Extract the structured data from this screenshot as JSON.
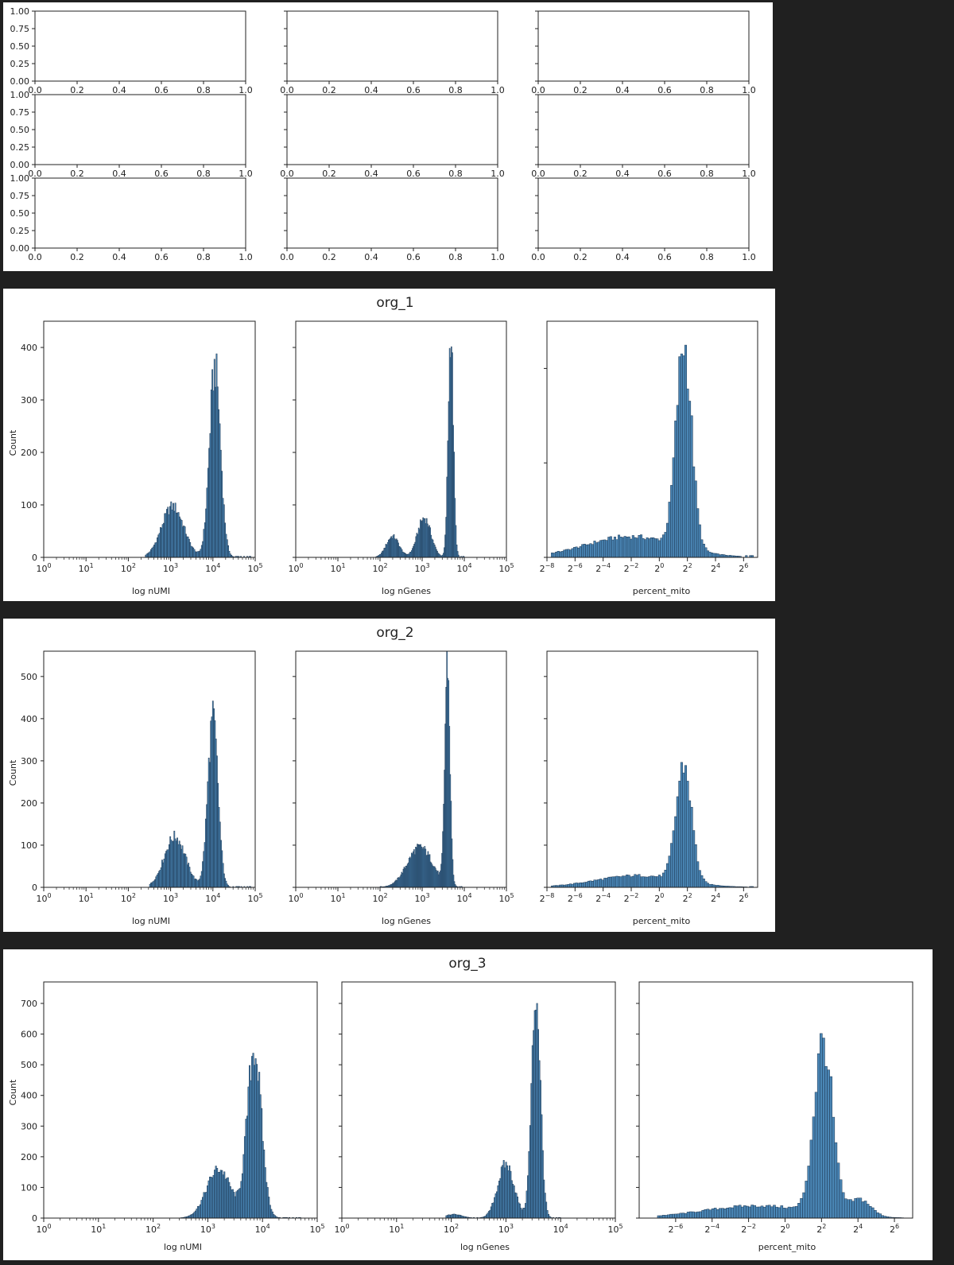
{
  "empty_grid": {
    "rows": 3,
    "cols": 3,
    "x_ticks": [
      "0.0",
      "0.2",
      "0.4",
      "0.6",
      "0.8",
      "1.0"
    ],
    "y_ticks": [
      "0.00",
      "0.25",
      "0.50",
      "0.75",
      "1.00"
    ]
  },
  "chart_data": [
    {
      "title": "org_1",
      "subplots": [
        {
          "type": "histogram",
          "xlabel": "log nUMI",
          "ylabel": "Count",
          "x_scale": "log10",
          "xlim": [
            "10^0",
            "10^5"
          ],
          "ylim": [
            0,
            450
          ],
          "y_ticks": [
            "0",
            "100",
            "200",
            "300",
            "400"
          ],
          "x_ticks": [
            {
              "base": "10",
              "exp": "0"
            },
            {
              "base": "10",
              "exp": "1"
            },
            {
              "base": "10",
              "exp": "2"
            },
            {
              "base": "10",
              "exp": "3"
            },
            {
              "base": "10",
              "exp": "4"
            },
            {
              "base": "10",
              "exp": "5"
            }
          ],
          "peaks": [
            {
              "center_log": 3.05,
              "height": 97,
              "width": 0.26
            },
            {
              "center_log": 4.05,
              "height": 362,
              "width": 0.13
            }
          ],
          "support_log": [
            2.4,
            4.9
          ]
        },
        {
          "type": "histogram",
          "xlabel": "log nGenes",
          "ylabel": "",
          "x_scale": "log10",
          "xlim": [
            "10^0",
            "10^5"
          ],
          "ylim": [
            0,
            450
          ],
          "x_ticks": [
            {
              "base": "10",
              "exp": "0"
            },
            {
              "base": "10",
              "exp": "1"
            },
            {
              "base": "10",
              "exp": "2"
            },
            {
              "base": "10",
              "exp": "3"
            },
            {
              "base": "10",
              "exp": "4"
            },
            {
              "base": "10",
              "exp": "5"
            }
          ],
          "peaks": [
            {
              "center_log": 2.3,
              "height": 40,
              "width": 0.15
            },
            {
              "center_log": 3.05,
              "height": 75,
              "width": 0.16
            },
            {
              "center_log": 3.68,
              "height": 430,
              "width": 0.06
            }
          ],
          "support_log": [
            1.9,
            4.0
          ]
        },
        {
          "type": "histogram",
          "xlabel": "percent_mito",
          "ylabel": "",
          "x_scale": "log2",
          "xlim": [
            "2^-8",
            "2^7"
          ],
          "ylim": [
            0,
            250
          ],
          "x_ticks": [
            {
              "base": "2",
              "exp": "−8"
            },
            {
              "base": "2",
              "exp": "−6"
            },
            {
              "base": "2",
              "exp": "−4"
            },
            {
              "base": "2",
              "exp": "−2"
            },
            {
              "base": "2",
              "exp": "0"
            },
            {
              "base": "2",
              "exp": "2"
            },
            {
              "base": "2",
              "exp": "4"
            },
            {
              "base": "2",
              "exp": "6"
            }
          ],
          "peaks": [
            {
              "center_log": 1.75,
              "height": 215,
              "width": 0.55
            },
            {
              "center_log": -2.0,
              "height": 22,
              "width": 3.2
            }
          ],
          "support_log": [
            -7.7,
            6.7
          ]
        }
      ]
    },
    {
      "title": "org_2",
      "subplots": [
        {
          "type": "histogram",
          "xlabel": "log nUMI",
          "ylabel": "Count",
          "x_scale": "log10",
          "xlim": [
            "10^0",
            "10^5"
          ],
          "ylim": [
            0,
            560
          ],
          "y_ticks": [
            "0",
            "100",
            "200",
            "300",
            "400",
            "500"
          ],
          "x_ticks": [
            {
              "base": "10",
              "exp": "0"
            },
            {
              "base": "10",
              "exp": "1"
            },
            {
              "base": "10",
              "exp": "2"
            },
            {
              "base": "10",
              "exp": "3"
            },
            {
              "base": "10",
              "exp": "4"
            },
            {
              "base": "10",
              "exp": "5"
            }
          ],
          "peaks": [
            {
              "center_log": 3.1,
              "height": 120,
              "width": 0.25
            },
            {
              "center_log": 4.0,
              "height": 400,
              "width": 0.12
            }
          ],
          "support_log": [
            2.5,
            4.9
          ]
        },
        {
          "type": "histogram",
          "xlabel": "log nGenes",
          "ylabel": "",
          "x_scale": "log10",
          "xlim": [
            "10^0",
            "10^5"
          ],
          "ylim": [
            0,
            560
          ],
          "x_ticks": [
            {
              "base": "10",
              "exp": "0"
            },
            {
              "base": "10",
              "exp": "1"
            },
            {
              "base": "10",
              "exp": "2"
            },
            {
              "base": "10",
              "exp": "3"
            },
            {
              "base": "10",
              "exp": "4"
            },
            {
              "base": "10",
              "exp": "5"
            }
          ],
          "peaks": [
            {
              "center_log": 2.95,
              "height": 95,
              "width": 0.3
            },
            {
              "center_log": 3.6,
              "height": 528,
              "width": 0.06
            }
          ],
          "support_log": [
            2.0,
            3.95
          ]
        },
        {
          "type": "histogram",
          "xlabel": "percent_mito",
          "ylabel": "",
          "x_scale": "log2",
          "xlim": [
            "2^-8",
            "2^7"
          ],
          "ylim": [
            0,
            560
          ],
          "x_ticks": [
            {
              "base": "2",
              "exp": "−8"
            },
            {
              "base": "2",
              "exp": "−6"
            },
            {
              "base": "2",
              "exp": "−4"
            },
            {
              "base": "2",
              "exp": "−2"
            },
            {
              "base": "2",
              "exp": "0"
            },
            {
              "base": "2",
              "exp": "2"
            },
            {
              "base": "2",
              "exp": "4"
            },
            {
              "base": "2",
              "exp": "6"
            }
          ],
          "peaks": [
            {
              "center_log": 1.75,
              "height": 275,
              "width": 0.55
            },
            {
              "center_log": -1.5,
              "height": 28,
              "width": 3.0
            }
          ],
          "support_log": [
            -7.7,
            6.7
          ]
        }
      ]
    },
    {
      "title": "org_3",
      "subplots": [
        {
          "type": "histogram",
          "xlabel": "log nUMI",
          "ylabel": "Count",
          "x_scale": "log10",
          "xlim": [
            "10^0",
            "10^5"
          ],
          "ylim": [
            0,
            770
          ],
          "y_ticks": [
            "0",
            "100",
            "200",
            "300",
            "400",
            "500",
            "600",
            "700"
          ],
          "x_ticks": [
            {
              "base": "10",
              "exp": "0"
            },
            {
              "base": "10",
              "exp": "1"
            },
            {
              "base": "10",
              "exp": "2"
            },
            {
              "base": "10",
              "exp": "3"
            },
            {
              "base": "10",
              "exp": "4"
            },
            {
              "base": "10",
              "exp": "5"
            }
          ],
          "peaks": [
            {
              "center_log": 3.2,
              "height": 160,
              "width": 0.22
            },
            {
              "center_log": 3.85,
              "height": 550,
              "width": 0.13
            }
          ],
          "support_log": [
            2.5,
            4.7
          ]
        },
        {
          "type": "histogram",
          "xlabel": "log nGenes",
          "ylabel": "",
          "x_scale": "log10",
          "xlim": [
            "10^0",
            "10^5"
          ],
          "ylim": [
            0,
            770
          ],
          "x_ticks": [
            {
              "base": "10",
              "exp": "0"
            },
            {
              "base": "10",
              "exp": "1"
            },
            {
              "base": "10",
              "exp": "2"
            },
            {
              "base": "10",
              "exp": "3"
            },
            {
              "base": "10",
              "exp": "4"
            },
            {
              "base": "10",
              "exp": "5"
            }
          ],
          "peaks": [
            {
              "center_log": 2.05,
              "height": 12,
              "width": 0.15
            },
            {
              "center_log": 3.0,
              "height": 175,
              "width": 0.15
            },
            {
              "center_log": 3.55,
              "height": 730,
              "width": 0.08
            }
          ],
          "support_log": [
            1.9,
            4.0
          ]
        },
        {
          "type": "histogram",
          "xlabel": "percent_mito",
          "ylabel": "",
          "x_scale": "log2",
          "xlim": [
            "2^-8",
            "2^7"
          ],
          "ylim": [
            0,
            770
          ],
          "x_ticks": [
            {
              "base": "2",
              "exp": "−6"
            },
            {
              "base": "2",
              "exp": "−4"
            },
            {
              "base": "2",
              "exp": "−2"
            },
            {
              "base": "2",
              "exp": "0"
            },
            {
              "base": "2",
              "exp": "2"
            },
            {
              "base": "2",
              "exp": "4"
            },
            {
              "base": "2",
              "exp": "6"
            }
          ],
          "peaks": [
            {
              "center_log": 2.1,
              "height": 560,
              "width": 0.5
            },
            {
              "center_log": 4.1,
              "height": 55,
              "width": 0.6
            },
            {
              "center_log": -1.5,
              "height": 40,
              "width": 3.0
            }
          ],
          "support_log": [
            -7.0,
            6.5
          ]
        }
      ]
    }
  ]
}
